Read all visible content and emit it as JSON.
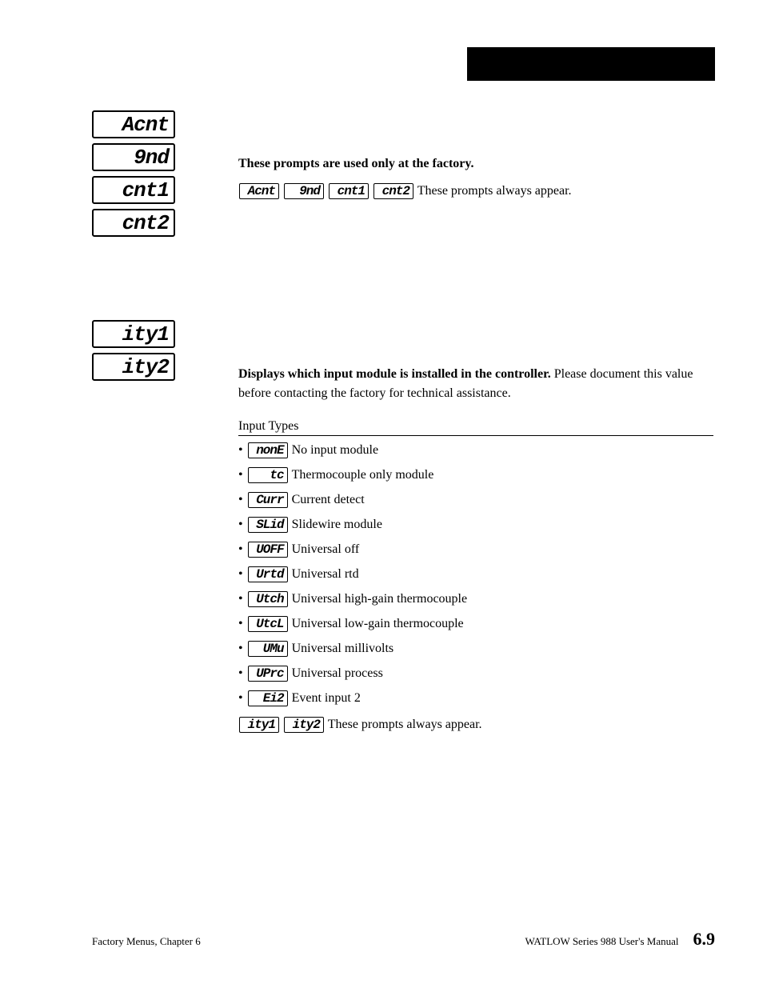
{
  "section1": {
    "displays": [
      "Acnt",
      "9nd",
      "cnt1",
      "cnt2"
    ],
    "heading": "These prompts are used only at the factory.",
    "inline_prompts": [
      "Acnt",
      "9nd",
      "cnt1",
      "cnt2"
    ],
    "trailing": "These prompts always appear."
  },
  "section2": {
    "displays": [
      "ity1",
      "ity2"
    ],
    "heading_bold": "Displays which input module is installed in the controller.",
    "heading_rest": " Please document this value before contacting the factory for technical assistance.",
    "subheading": "Input Types",
    "items": [
      {
        "code": "nonE",
        "desc": "No input module"
      },
      {
        "code": "tc",
        "desc": "Thermocouple only module"
      },
      {
        "code": "Curr",
        "desc": "Current detect"
      },
      {
        "code": "SLid",
        "desc": "Slidewire module"
      },
      {
        "code": "UOFF",
        "desc": "Universal off"
      },
      {
        "code": "Urtd",
        "desc": "Universal rtd"
      },
      {
        "code": "Utch",
        "desc": "Universal high-gain thermocouple"
      },
      {
        "code": "UtcL",
        "desc": "Universal low-gain thermocouple"
      },
      {
        "code": "UMu",
        "desc": "Universal millivolts"
      },
      {
        "code": "UPrc",
        "desc": "Universal process"
      },
      {
        "code": "Ei2",
        "desc": "Event input 2"
      }
    ],
    "footer_prompts": [
      "ity1",
      "ity2"
    ],
    "footer_trailing": "These prompts always appear."
  },
  "footer": {
    "left": "Factory Menus, Chapter 6",
    "right_text": "WATLOW Series 988 User's Manual",
    "page": "6.9"
  },
  "colors": {
    "bg": "#ffffff",
    "text": "#000000",
    "bar": "#000000"
  }
}
